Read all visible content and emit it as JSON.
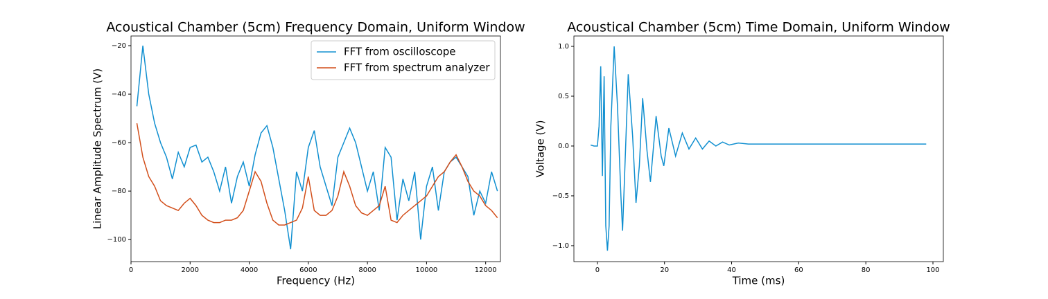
{
  "chart_data": [
    {
      "type": "line",
      "title": "Acoustical Chamber (5cm) Frequency Domain, Uniform Window",
      "x_label": "Frequency (Hz)",
      "y_label": "Linear Amplitude Spectrum (V)",
      "x": [
        200,
        400,
        600,
        800,
        1000,
        1200,
        1400,
        1600,
        1800,
        2000,
        2200,
        2400,
        2600,
        2800,
        3000,
        3200,
        3400,
        3600,
        3800,
        4000,
        4200,
        4400,
        4600,
        4800,
        5000,
        5200,
        5400,
        5600,
        5800,
        6000,
        6200,
        6400,
        6600,
        6800,
        7000,
        7200,
        7400,
        7600,
        7800,
        8000,
        8200,
        8400,
        8600,
        8800,
        9000,
        9200,
        9400,
        9600,
        9800,
        10000,
        10200,
        10400,
        10600,
        10800,
        11000,
        11200,
        11400,
        11600,
        11800,
        12000,
        12200,
        12400
      ],
      "series": [
        {
          "name": "FFT from oscilloscope",
          "color": "#108fd0",
          "values": [
            -45,
            -20,
            -40,
            -52,
            -60,
            -66,
            -75,
            -64,
            -70,
            -62,
            -61,
            -68,
            -66,
            -72,
            -80,
            -70,
            -85,
            -74,
            -68,
            -78,
            -65,
            -56,
            -53,
            -62,
            -75,
            -88,
            -104,
            -72,
            -80,
            -62,
            -55,
            -70,
            -78,
            -86,
            -66,
            -60,
            -54,
            -60,
            -70,
            -80,
            -72,
            -88,
            -62,
            -66,
            -92,
            -75,
            -84,
            -72,
            -100,
            -78,
            -70,
            -88,
            -72,
            -68,
            -66,
            -70,
            -74,
            -90,
            -80,
            -85,
            -72,
            -80
          ]
        },
        {
          "name": "FFT from spectrum analyzer",
          "color": "#d24e1a",
          "values": [
            -52,
            -66,
            -74,
            -78,
            -84,
            -86,
            -87,
            -88,
            -85,
            -83,
            -86,
            -90,
            -92,
            -93,
            -93,
            -92,
            -92,
            -91,
            -88,
            -80,
            -72,
            -76,
            -85,
            -92,
            -94,
            -94,
            -93,
            -92,
            -87,
            -74,
            -88,
            -90,
            -90,
            -88,
            -82,
            -72,
            -78,
            -86,
            -89,
            -90,
            -88,
            -86,
            -78,
            -92,
            -93,
            -90,
            -88,
            -86,
            -84,
            -82,
            -78,
            -74,
            -72,
            -68,
            -65,
            -70,
            -76,
            -80,
            -82,
            -86,
            -88,
            -91
          ]
        }
      ],
      "xlim": [
        0,
        12500
      ],
      "ylim": [
        -109.1,
        -16
      ],
      "xticks": [
        0,
        2000,
        4000,
        6000,
        8000,
        10000,
        12000
      ],
      "yticks": [
        {
          "value": -100,
          "label": "−100"
        },
        {
          "value": -80,
          "label": "−80"
        },
        {
          "value": -60,
          "label": "−60"
        },
        {
          "value": -40,
          "label": "−40"
        },
        {
          "value": -20,
          "label": "−20"
        }
      ],
      "legend": "upper right"
    },
    {
      "type": "line",
      "title": "Acoustical Chamber (5cm) Time Domain, Uniform Window",
      "x_label": "Time (ms)",
      "y_label": "Voltage (V)",
      "x": [
        -2,
        -1,
        0,
        0.5,
        1,
        1.5,
        2,
        2.5,
        3,
        3.5,
        4,
        5,
        6,
        7,
        7.5,
        8,
        9.2,
        10.5,
        11.5,
        12.5,
        13.5,
        14.8,
        15.8,
        17,
        17.5,
        19,
        19.8,
        21.3,
        23.3,
        25.3,
        27.3,
        29.3,
        31.3,
        33.3,
        35.3,
        37.3,
        39.3,
        42,
        45,
        50,
        60,
        70,
        80,
        90,
        98
      ],
      "series": [
        {
          "name": null,
          "color": "#108fd0",
          "values": [
            0.01,
            0,
            0,
            0.2,
            0.8,
            -0.3,
            0.7,
            -0.8,
            -1.05,
            -0.8,
            0.2,
            1.0,
            0.4,
            -0.5,
            -0.85,
            -0.4,
            0.72,
            0.1,
            -0.57,
            -0.2,
            0.48,
            -0.05,
            -0.36,
            0.1,
            0.3,
            -0.1,
            -0.2,
            0.18,
            -0.1,
            0.13,
            -0.03,
            0.08,
            -0.03,
            0.05,
            0,
            0.04,
            0.01,
            0.03,
            0.02,
            0.02,
            0.02,
            0.02,
            0.02,
            0.02,
            0.02
          ]
        }
      ],
      "xlim": [
        -7,
        103.1
      ],
      "ylim": [
        -1.16,
        1.104
      ],
      "xticks": [
        0,
        20,
        40,
        60,
        80,
        100
      ],
      "yticks": [
        {
          "value": -1,
          "label": "−1.0"
        },
        {
          "value": -0.5,
          "label": "−0.5"
        },
        {
          "value": 0,
          "label": "0.0"
        },
        0.5,
        {
          "value": 1,
          "label": "1.0"
        }
      ]
    }
  ]
}
